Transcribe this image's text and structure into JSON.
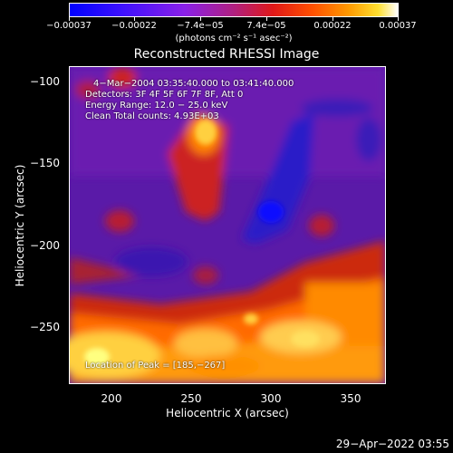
{
  "chart_data": {
    "type": "heatmap",
    "title": "Reconstructed RHESSI Image",
    "xlabel": "Heliocentric X (arcsec)",
    "ylabel": "Heliocentric Y (arcsec)",
    "xlim": [
      172,
      367
    ],
    "ylim": [
      -284,
      -90
    ],
    "x_ticks": [
      "200",
      "250",
      "300",
      "350"
    ],
    "y_ticks": [
      "−100",
      "−150",
      "−200",
      "−250"
    ],
    "colorbar": {
      "ticks": [
        "−0.00037",
        "−0.00022",
        "−7.4e−05",
        "7.4e−05",
        "0.00022",
        "0.00037"
      ],
      "unit": "(photons cm⁻² s⁻¹ asec⁻²)",
      "range": [
        -0.00037,
        0.00037
      ]
    },
    "annotations": {
      "time": "4−Mar−2004 03:35:40.000 to 03:41:40.000",
      "detectors": "Detectors: 3F 4F 5F 6F 7F 8F, Att 0",
      "energy": "Energy Range: 12.0 − 25.0 keV",
      "clean": "Clean    Total counts: 4.93E+03",
      "peak": "Location of Peak = [185,−267]"
    },
    "features": [
      {
        "x": 185,
        "y": -267,
        "value": 0.00037
      },
      {
        "x": 258,
        "y": -128,
        "value": 0.0003
      },
      {
        "x": 300,
        "y": -178,
        "value": -0.00037
      }
    ]
  },
  "footer": {
    "date": "29−Apr−2022 03:55"
  },
  "colors": {
    "background": "#000000",
    "foreground": "#ffffff"
  }
}
